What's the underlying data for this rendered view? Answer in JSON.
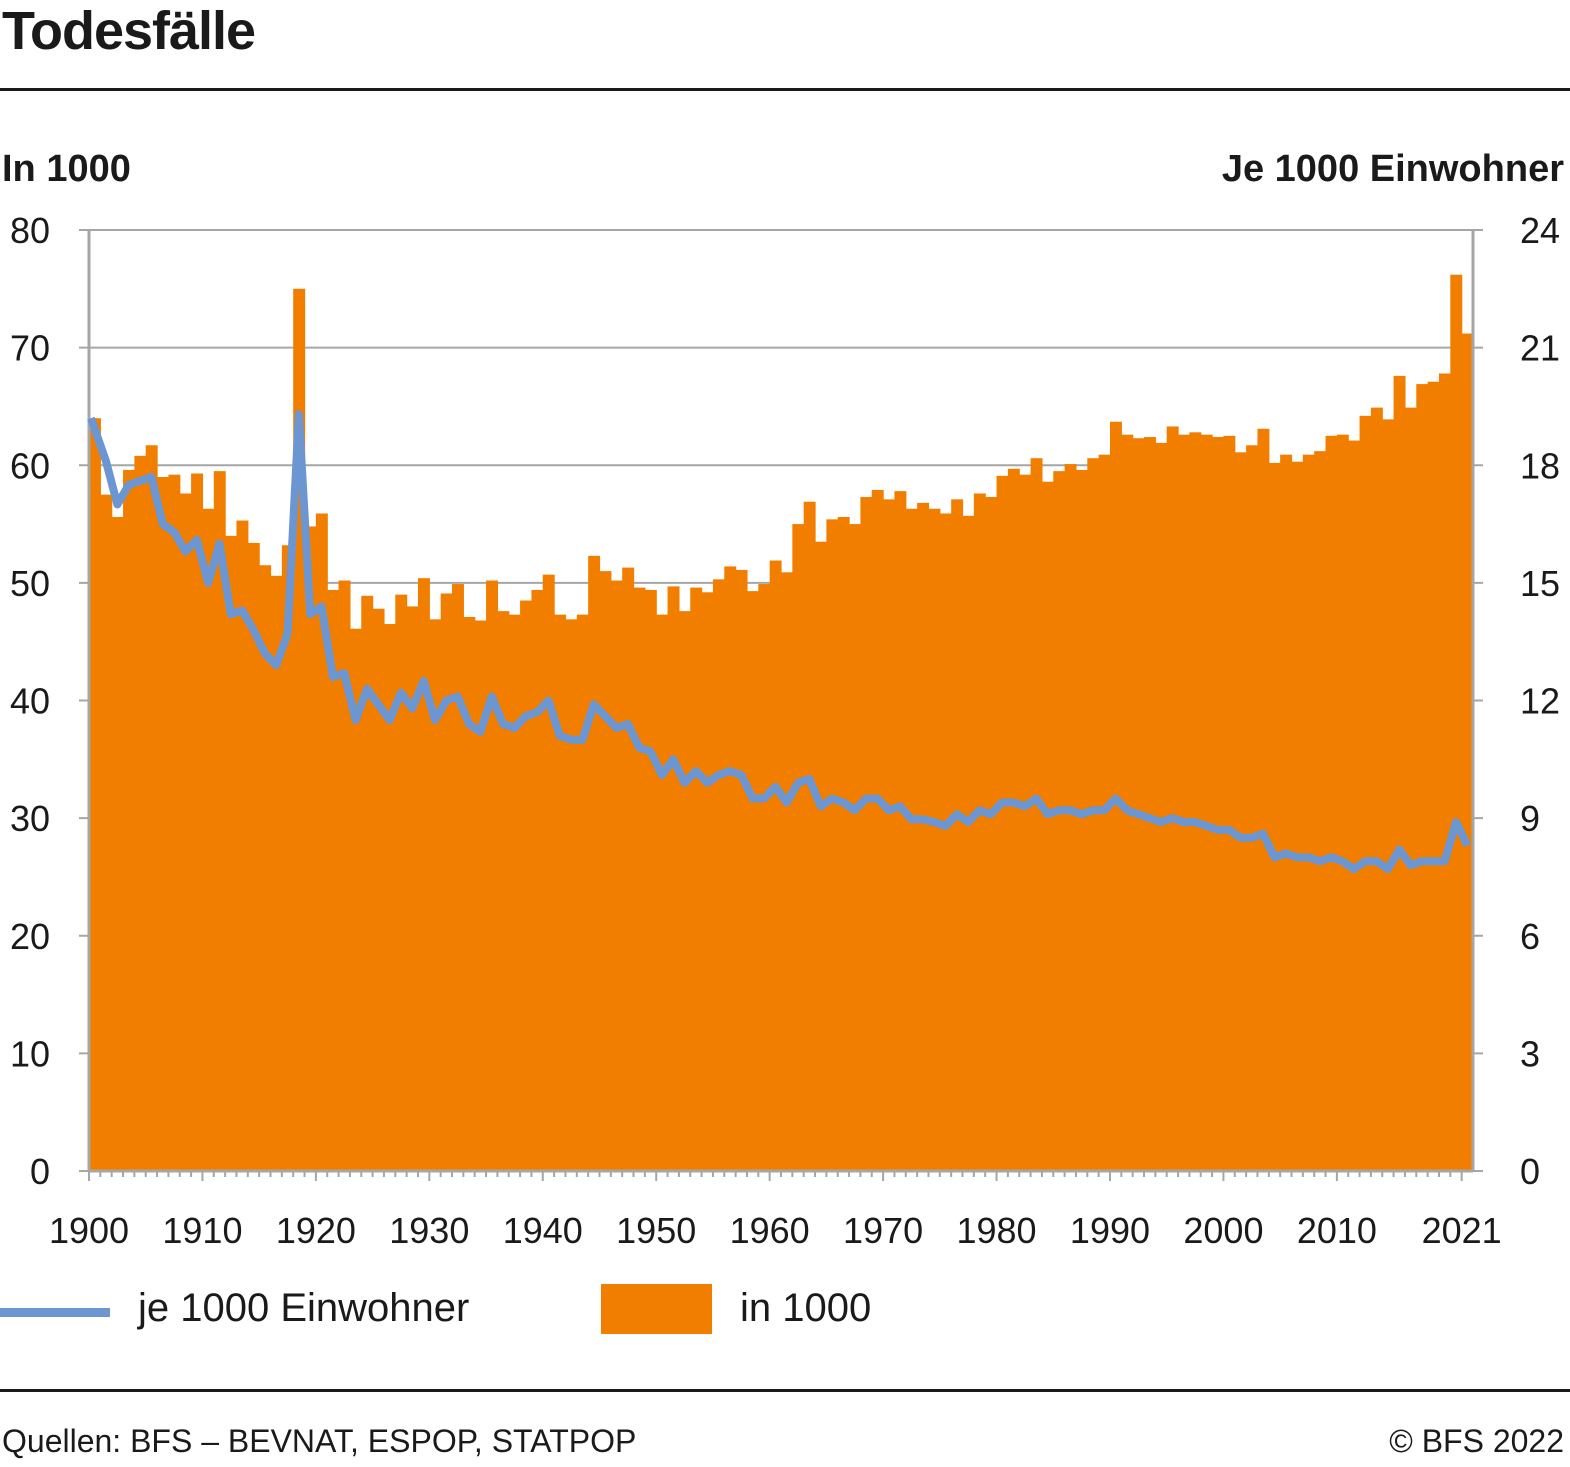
{
  "title": "Todesfälle",
  "axis_title_left": "In 1000",
  "axis_title_right": "Je 1000 Einwohner",
  "legend": {
    "line_label": "je 1000 Einwohner",
    "bar_label": "in 1000"
  },
  "source": "Quellen: BFS – BEVNAT, ESPOP, STATPOP",
  "copyright": "© BFS 2022",
  "colors": {
    "bars": "#f27e00",
    "line": "#6b96d1",
    "grid": "#a6a6a6",
    "axis": "#a6a6a6"
  },
  "chart_data": {
    "type": "bar",
    "grid": true,
    "legend_position": "bottom",
    "x_tick_labels": [
      "1900",
      "1910",
      "1920",
      "1930",
      "1940",
      "1950",
      "1960",
      "1970",
      "1980",
      "1990",
      "2000",
      "2010",
      "2021"
    ],
    "y_left": {
      "label": "In 1000",
      "ylim": [
        0,
        80
      ],
      "ticks": [
        "0",
        "10",
        "20",
        "30",
        "40",
        "50",
        "60",
        "70",
        "80"
      ]
    },
    "y_right": {
      "label": "Je 1000 Einwohner",
      "ylim": [
        0,
        24
      ],
      "ticks": [
        "0",
        "3",
        "6",
        "9",
        "12",
        "15",
        "18",
        "21",
        "24"
      ]
    },
    "x": [
      1900,
      1901,
      1902,
      1903,
      1904,
      1905,
      1906,
      1907,
      1908,
      1909,
      1910,
      1911,
      1912,
      1913,
      1914,
      1915,
      1916,
      1917,
      1918,
      1919,
      1920,
      1921,
      1922,
      1923,
      1924,
      1925,
      1926,
      1927,
      1928,
      1929,
      1930,
      1931,
      1932,
      1933,
      1934,
      1935,
      1936,
      1937,
      1938,
      1939,
      1940,
      1941,
      1942,
      1943,
      1944,
      1945,
      1946,
      1947,
      1948,
      1949,
      1950,
      1951,
      1952,
      1953,
      1954,
      1955,
      1956,
      1957,
      1958,
      1959,
      1960,
      1961,
      1962,
      1963,
      1964,
      1965,
      1966,
      1967,
      1968,
      1969,
      1970,
      1971,
      1972,
      1973,
      1974,
      1975,
      1976,
      1977,
      1978,
      1979,
      1980,
      1981,
      1982,
      1983,
      1984,
      1985,
      1986,
      1987,
      1988,
      1989,
      1990,
      1991,
      1992,
      1993,
      1994,
      1995,
      1996,
      1997,
      1998,
      1999,
      2000,
      2001,
      2002,
      2003,
      2004,
      2005,
      2006,
      2007,
      2008,
      2009,
      2010,
      2011,
      2012,
      2013,
      2014,
      2015,
      2016,
      2017,
      2018,
      2019,
      2020,
      2021
    ],
    "series": [
      {
        "name": "in 1000",
        "type": "bar",
        "axis": "left",
        "values": [
          64.0,
          57.5,
          55.6,
          59.6,
          60.8,
          61.7,
          59.0,
          59.2,
          57.6,
          59.3,
          56.3,
          59.5,
          54.0,
          55.3,
          53.4,
          51.5,
          50.6,
          53.2,
          75.0,
          54.8,
          55.9,
          49.4,
          50.2,
          46.1,
          48.9,
          47.8,
          46.5,
          49.0,
          48.0,
          50.4,
          46.9,
          49.1,
          49.9,
          47.1,
          46.8,
          50.2,
          47.6,
          47.3,
          48.5,
          49.4,
          50.7,
          47.3,
          46.9,
          47.3,
          52.3,
          51.0,
          50.2,
          51.3,
          49.6,
          49.4,
          47.3,
          49.7,
          47.6,
          49.6,
          49.2,
          50.3,
          51.4,
          51.1,
          49.3,
          49.9,
          51.9,
          50.9,
          55.0,
          56.9,
          53.5,
          55.4,
          55.6,
          55.0,
          57.3,
          57.9,
          57.1,
          57.8,
          56.3,
          56.8,
          56.3,
          55.9,
          57.1,
          55.7,
          57.6,
          57.3,
          59.1,
          59.7,
          59.2,
          60.6,
          58.6,
          59.5,
          60.1,
          59.6,
          60.6,
          60.9,
          63.7,
          62.6,
          62.3,
          62.4,
          61.9,
          63.3,
          62.6,
          62.8,
          62.6,
          62.4,
          62.5,
          61.1,
          61.7,
          63.1,
          60.2,
          60.9,
          60.3,
          60.9,
          61.2,
          62.5,
          62.6,
          62.1,
          64.2,
          64.9,
          63.9,
          67.6,
          64.9,
          66.9,
          67.1,
          67.8,
          76.2,
          71.2
        ]
      },
      {
        "name": "je 1000 Einwohner",
        "type": "line",
        "axis": "right",
        "values": [
          19.2,
          18.1,
          17.0,
          17.5,
          17.6,
          17.7,
          16.5,
          16.3,
          15.8,
          16.1,
          15.0,
          16.0,
          14.2,
          14.3,
          13.8,
          13.2,
          12.9,
          13.7,
          19.3,
          14.2,
          14.4,
          12.6,
          12.7,
          11.5,
          12.3,
          11.9,
          11.5,
          12.2,
          11.8,
          12.5,
          11.5,
          12.0,
          12.1,
          11.4,
          11.2,
          12.1,
          11.4,
          11.3,
          11.6,
          11.7,
          12.0,
          11.1,
          11.0,
          11.0,
          11.9,
          11.6,
          11.3,
          11.4,
          10.8,
          10.7,
          10.1,
          10.5,
          9.9,
          10.2,
          9.9,
          10.1,
          10.2,
          10.1,
          9.5,
          9.5,
          9.8,
          9.4,
          9.9,
          10.0,
          9.3,
          9.5,
          9.4,
          9.2,
          9.5,
          9.5,
          9.2,
          9.3,
          8.97,
          8.97,
          8.9,
          8.8,
          9.1,
          8.9,
          9.2,
          9.1,
          9.4,
          9.4,
          9.3,
          9.5,
          9.1,
          9.2,
          9.2,
          9.1,
          9.2,
          9.2,
          9.5,
          9.2,
          9.1,
          9.0,
          8.9,
          9.0,
          8.9,
          8.9,
          8.8,
          8.7,
          8.7,
          8.5,
          8.5,
          8.6,
          8.0,
          8.1,
          8.0,
          8.0,
          7.9,
          8.0,
          7.9,
          7.7,
          7.9,
          7.9,
          7.7,
          8.2,
          7.8,
          7.9,
          7.9,
          7.9,
          8.9,
          8.3
        ]
      }
    ]
  }
}
